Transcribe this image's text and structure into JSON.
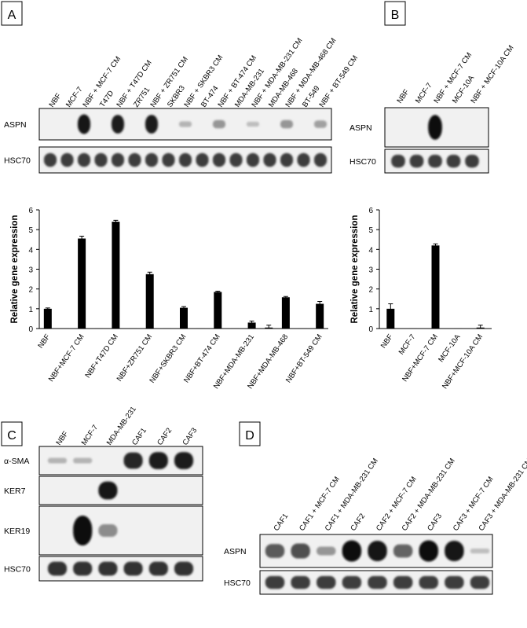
{
  "panels": {
    "A": {
      "letter": "A",
      "lanes": [
        "NBF",
        "MCF-7",
        "NBF + MCF-7 CM",
        "T47D",
        "NBF + T47D CM",
        "ZR751",
        "NBF + ZR751 CM",
        "SKBR3",
        "NBF + SKBR3 CM",
        "BT-474",
        "NBF + BT-474 CM",
        "MDA-MB-231",
        "NBF + MDA-MB-231 CM",
        "MDA-MB-468",
        "NBF + MDA-MB-468 CM",
        "BT-549",
        "NBF + BT-549 CM"
      ],
      "blots": [
        {
          "label": "ASPN",
          "intensities": [
            0.0,
            0.0,
            0.95,
            0.0,
            0.9,
            0.0,
            0.9,
            0.0,
            0.15,
            0.0,
            0.3,
            0.0,
            0.1,
            0.0,
            0.3,
            0.0,
            0.25
          ]
        },
        {
          "label": "HSC70",
          "intensities": [
            0.75,
            0.75,
            0.75,
            0.75,
            0.75,
            0.75,
            0.75,
            0.75,
            0.75,
            0.75,
            0.75,
            0.75,
            0.75,
            0.75,
            0.75,
            0.75,
            0.75
          ]
        }
      ]
    },
    "B": {
      "letter": "B",
      "lanes": [
        "NBF",
        "MCF-7",
        "NBF + MCF-7 CM",
        "MCF-10A",
        "NBF + MCF-10A CM"
      ],
      "blots": [
        {
          "label": "ASPN",
          "intensities": [
            0.0,
            0.0,
            1.0,
            0.0,
            0.0
          ]
        },
        {
          "label": "HSC70",
          "intensities": [
            0.75,
            0.75,
            0.75,
            0.75,
            0.75
          ]
        }
      ]
    },
    "C": {
      "letter": "C",
      "lanes": [
        "NBF",
        "MCF-7",
        "MDA-MB-231",
        "CAF1",
        "CAF2",
        "CAF3"
      ],
      "blots": [
        {
          "label": "α-SMA",
          "intensities": [
            0.15,
            0.15,
            0.0,
            0.85,
            0.9,
            0.9
          ]
        },
        {
          "label": "KER7",
          "intensities": [
            0.0,
            0.0,
            0.95,
            0.0,
            0.0,
            0.0
          ]
        },
        {
          "label": "KER19",
          "intensities": [
            0.0,
            1.0,
            0.35,
            0.0,
            0.0,
            0.0
          ]
        },
        {
          "label": "HSC70",
          "intensities": [
            0.8,
            0.8,
            0.8,
            0.8,
            0.8,
            0.8
          ]
        }
      ]
    },
    "D": {
      "letter": "D",
      "lanes": [
        "CAF1",
        "CAF1 + MCF-7 CM",
        "CAF1 + MDA-MB-231 CM",
        "CAF2",
        "CAF2 + MCF-7 CM",
        "CAF2 + MDA-MB-231 CM",
        "CAF3",
        "CAF3 + MCF-7 CM",
        "CAF3 + MDA-MB-231 CM"
      ],
      "blots": [
        {
          "label": "ASPN",
          "intensities": [
            0.6,
            0.65,
            0.3,
            1.0,
            0.95,
            0.55,
            1.0,
            0.95,
            0.1
          ]
        },
        {
          "label": "HSC70",
          "intensities": [
            0.75,
            0.75,
            0.75,
            0.75,
            0.75,
            0.75,
            0.75,
            0.75,
            0.75
          ]
        }
      ]
    }
  },
  "chart_data": [
    {
      "type": "bar",
      "panel": "A",
      "ylabel": "Relative gene expression",
      "ylim": [
        0,
        6
      ],
      "yticks": [
        0,
        1,
        2,
        3,
        4,
        5,
        6
      ],
      "tick_labels": [
        "NBF",
        "NBF+MCF-7 CM",
        "NBF+T47D CM",
        "NBF+ZR751 CM",
        "NBF+SKBR3 CM",
        "NBF+BT-474 CM",
        "NBF+MDA-MB-231",
        "NBF+MDA-MB-468",
        "NBF+BT-549 CM"
      ],
      "bars": [
        {
          "value": 1.0,
          "error": 0.04
        },
        {
          "value": 0.02,
          "error": 0.0
        },
        {
          "value": 4.55,
          "error": 0.12
        },
        {
          "value": 0.02,
          "error": 0.0
        },
        {
          "value": 5.4,
          "error": 0.07
        },
        {
          "value": 0.02,
          "error": 0.0
        },
        {
          "value": 2.75,
          "error": 0.1
        },
        {
          "value": 0.02,
          "error": 0.0
        },
        {
          "value": 1.05,
          "error": 0.06
        },
        {
          "value": 0.02,
          "error": 0.0
        },
        {
          "value": 1.85,
          "error": 0.04
        },
        {
          "value": 0.02,
          "error": 0.0
        },
        {
          "value": 0.3,
          "error": 0.08
        },
        {
          "value": 0.05,
          "error": 0.12
        },
        {
          "value": 1.58,
          "error": 0.04
        },
        {
          "value": 0.02,
          "error": 0.0
        },
        {
          "value": 1.25,
          "error": 0.12
        }
      ]
    },
    {
      "type": "bar",
      "panel": "B",
      "ylabel": "Relative gene expression",
      "ylim": [
        0,
        6
      ],
      "yticks": [
        0,
        1,
        2,
        3,
        4,
        5,
        6
      ],
      "tick_labels": [
        "NBF",
        "MCF-7",
        "NBF+MCF-7 CM",
        "MCF-10A",
        "NBF+MCF-10A CM"
      ],
      "bars": [
        {
          "value": 1.0,
          "error": 0.25
        },
        {
          "value": 0.02,
          "error": 0.0
        },
        {
          "value": 4.2,
          "error": 0.08
        },
        {
          "value": 0.02,
          "error": 0.0
        },
        {
          "value": 0.05,
          "error": 0.12
        }
      ]
    }
  ]
}
